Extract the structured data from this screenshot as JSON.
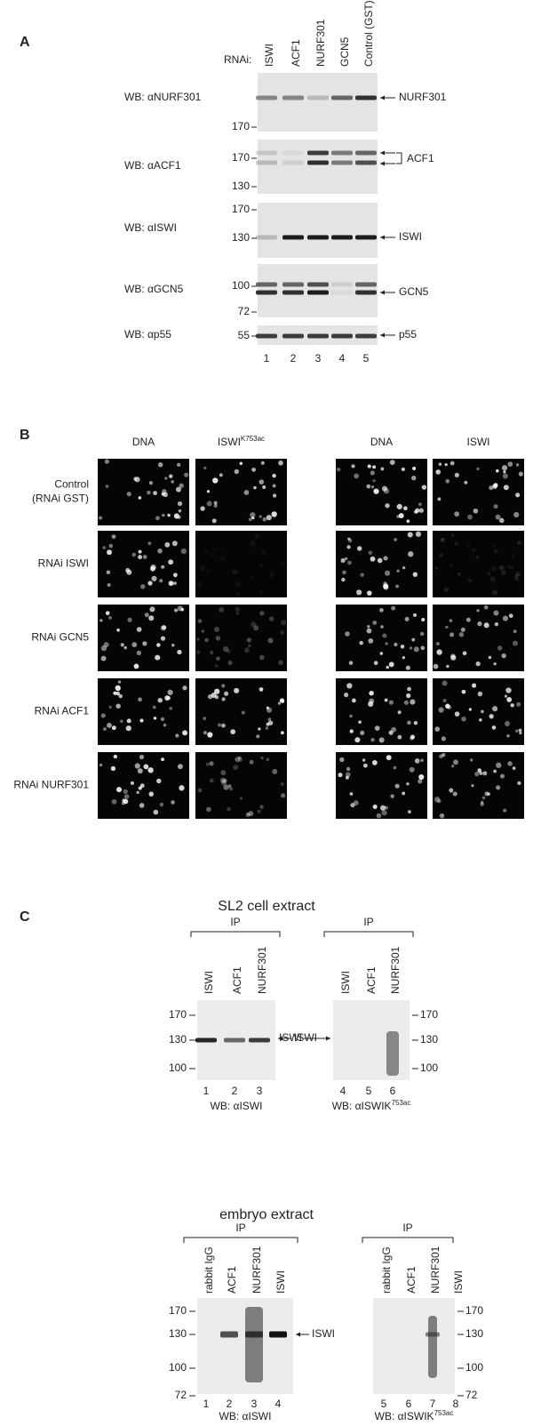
{
  "panel_a": {
    "label": "A",
    "rnai_label": "RNAi:",
    "lanes": [
      "ISWI",
      "ACF1",
      "NURF301",
      "GCN5",
      "Control (GST)"
    ],
    "rows": [
      {
        "antibody": "WB: αNURF301",
        "markers": [
          170
        ],
        "target": "NURF301"
      },
      {
        "antibody": "WB: αACF1",
        "markers": [
          170,
          130
        ],
        "target": "ACF1"
      },
      {
        "antibody": "WB: αISWI",
        "markers": [
          170,
          130
        ],
        "target": "ISWI"
      },
      {
        "antibody": "WB: αGCN5",
        "markers": [
          100,
          72
        ],
        "target": "GCN5"
      },
      {
        "antibody": "WB: αp55",
        "markers": [
          55
        ],
        "target": "p55"
      }
    ],
    "lane_numbers": [
      1,
      2,
      3,
      4,
      5
    ]
  },
  "panel_b": {
    "label": "B",
    "columns": [
      {
        "text": "DNA"
      },
      {
        "text": "ISWI",
        "sup": "K753ac"
      },
      {
        "text": "DNA"
      },
      {
        "text": "ISWI"
      }
    ],
    "rows": [
      [
        "Control",
        "(RNAi GST)"
      ],
      [
        "RNAi ISWI"
      ],
      [
        "RNAi GCN5"
      ],
      [
        "RNAi ACF1"
      ],
      [
        "RNAi NURF301"
      ]
    ]
  },
  "panel_c": {
    "label": "C",
    "extracts": [
      {
        "title": "SL2 cell extract",
        "blots": [
          {
            "ip": "IP",
            "lanes": [
              "ISWI",
              "ACF1",
              "NURF301"
            ],
            "markers": [
              170,
              130,
              100
            ],
            "target": "ISWI",
            "lane_numbers": [
              1,
              2,
              3
            ],
            "wb": {
              "text": "WB: αISWI"
            }
          },
          {
            "ip": "IP",
            "lanes": [
              "ISWI",
              "ACF1",
              "NURF301"
            ],
            "markers": [
              170,
              130,
              100
            ],
            "target": "ISWI",
            "lane_numbers": [
              4,
              5,
              6
            ],
            "wb": {
              "text": "WB: αISWIK",
              "sup": "753ac"
            }
          }
        ]
      },
      {
        "title": "embryo extract",
        "blots": [
          {
            "ip": "IP",
            "lanes": [
              "rabbit IgG",
              "ACF1",
              "NURF301",
              "ISWI"
            ],
            "markers": [
              170,
              130,
              100,
              72
            ],
            "target": "ISWI",
            "lane_numbers": [
              1,
              2,
              3,
              4
            ],
            "wb": {
              "text": "WB: αISWI"
            }
          },
          {
            "ip": "IP",
            "lanes": [
              "rabbit IgG",
              "ACF1",
              "NURF301",
              "ISWI"
            ],
            "markers": [
              170,
              130,
              100,
              72
            ],
            "lane_numbers": [
              5,
              6,
              7,
              8
            ],
            "wb": {
              "text": "WB: αISWIK",
              "sup": "753ac"
            }
          }
        ]
      }
    ]
  }
}
